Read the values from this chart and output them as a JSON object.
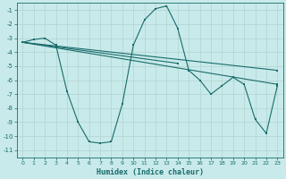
{
  "xlabel": "Humidex (Indice chaleur)",
  "bg_color": "#c8eaea",
  "grid_color": "#b0d4d0",
  "line_color": "#1a6b6b",
  "x_data": [
    0,
    1,
    2,
    3,
    4,
    5,
    6,
    7,
    8,
    9,
    10,
    11,
    12,
    13,
    14,
    15,
    16,
    17,
    18,
    19,
    20,
    21,
    22,
    23
  ],
  "series1": [
    -3.3,
    -3.1,
    -3.0,
    -3.5,
    -6.8,
    -9.0,
    -10.4,
    -10.5,
    -10.4,
    -7.7,
    -3.5,
    -1.7,
    -0.9,
    -0.7,
    -2.3,
    -5.3,
    -6.0,
    -7.0,
    -6.4,
    -5.8,
    -6.3,
    -8.8,
    -9.8,
    -6.4
  ],
  "series2_x": [
    0,
    23
  ],
  "series2_y": [
    -3.3,
    -6.3
  ],
  "series3_x": [
    0,
    23
  ],
  "series3_y": [
    -3.3,
    -5.3
  ],
  "series4_x": [
    0,
    14
  ],
  "series4_y": [
    -3.3,
    -4.8
  ],
  "ylim": [
    -11.5,
    -0.5
  ],
  "xlim": [
    -0.5,
    23.5
  ],
  "yticks": [
    -11,
    -10,
    -9,
    -8,
    -7,
    -6,
    -5,
    -4,
    -3,
    -2,
    -1
  ],
  "xticks": [
    0,
    1,
    2,
    3,
    4,
    5,
    6,
    7,
    8,
    9,
    10,
    11,
    12,
    13,
    14,
    15,
    16,
    17,
    18,
    19,
    20,
    21,
    22,
    23
  ]
}
